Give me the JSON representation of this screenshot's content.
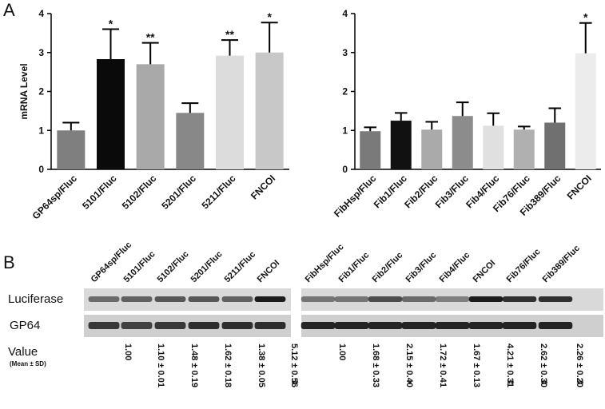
{
  "panel_labels": [
    "A",
    "B"
  ],
  "chart_data": [
    {
      "type": "bar",
      "ylabel": "mRNA  Level",
      "categories": [
        "GP64sp/Fluc",
        "5101/Fluc",
        "5102/Fluc",
        "5201/Fluc",
        "5211/Fluc",
        "FNCOI"
      ],
      "values": [
        1.0,
        2.83,
        2.7,
        1.45,
        2.92,
        3.0
      ],
      "errors": [
        0.2,
        0.77,
        0.55,
        0.25,
        0.4,
        0.77
      ],
      "significance": [
        null,
        "*",
        "**",
        null,
        "**",
        "*"
      ],
      "colors": [
        "#7f7f7f",
        "#0a0a0a",
        "#a9a9a9",
        "#888888",
        "#dcdcdc",
        "#c8c8c8"
      ],
      "ylim": [
        0,
        4
      ],
      "yticks": [
        0,
        1,
        2,
        3,
        4
      ]
    },
    {
      "type": "bar",
      "categories": [
        "FibHsp/Fluc",
        "Fib1/Fluc",
        "Fib2/Fluc",
        "Fib3/Fluc",
        "Fib4/Fluc",
        "Fib76/Fluc",
        "Fib389/Fluc",
        "FNCOI"
      ],
      "values": [
        0.98,
        1.25,
        1.02,
        1.37,
        1.12,
        1.02,
        1.2,
        2.98
      ],
      "errors": [
        0.1,
        0.2,
        0.2,
        0.35,
        0.32,
        0.08,
        0.37,
        0.78
      ],
      "significance": [
        null,
        null,
        null,
        null,
        null,
        null,
        null,
        "*"
      ],
      "colors": [
        "#7a7a7a",
        "#111111",
        "#aaaaaa",
        "#8c8c8c",
        "#e0e0e0",
        "#b0b0b0",
        "#707070",
        "#ececec"
      ],
      "ylim": [
        0,
        4
      ],
      "yticks": [
        0,
        1,
        2,
        3,
        4
      ]
    }
  ],
  "blot": {
    "row_labels": [
      "Luciferase",
      "GP64"
    ],
    "value_label": "Value",
    "value_sublabel": "(Mean ± SD)",
    "groups": [
      {
        "lanes": [
          "GP64sp/Fluc",
          "5101/Fluc",
          "5102/Fluc",
          "5201/Fluc",
          "5211/Fluc",
          "FNCOI"
        ],
        "values": [
          "1.00",
          "1.10 ± 0.01",
          "1.48 ± 0.19",
          "1.62 ± 0.18",
          "1.38 ± 0.05",
          "5.12 ± 0.56"
        ],
        "significance": [
          null,
          null,
          null,
          null,
          null,
          "**"
        ]
      },
      {
        "lanes": [
          "FibHsp/Fluc",
          "Fib1/Fluc",
          "Fib2/Fluc",
          "Fib3/Fluc",
          "Fib4/Fluc",
          "FNCOI",
          "Fib76/Fluc",
          "Fib389/Fluc"
        ],
        "values": [
          "1.00",
          "1.68 ± 0.33",
          "2.15 ± 0.40",
          "1.72 ± 0.41",
          "1.67 ± 0.13",
          "4.21 ± 0.31",
          "2.62 ± 0.30",
          "2.26 ± 0.20"
        ],
        "significance": [
          null,
          null,
          "*",
          null,
          null,
          "**",
          "**",
          "**"
        ]
      }
    ]
  }
}
